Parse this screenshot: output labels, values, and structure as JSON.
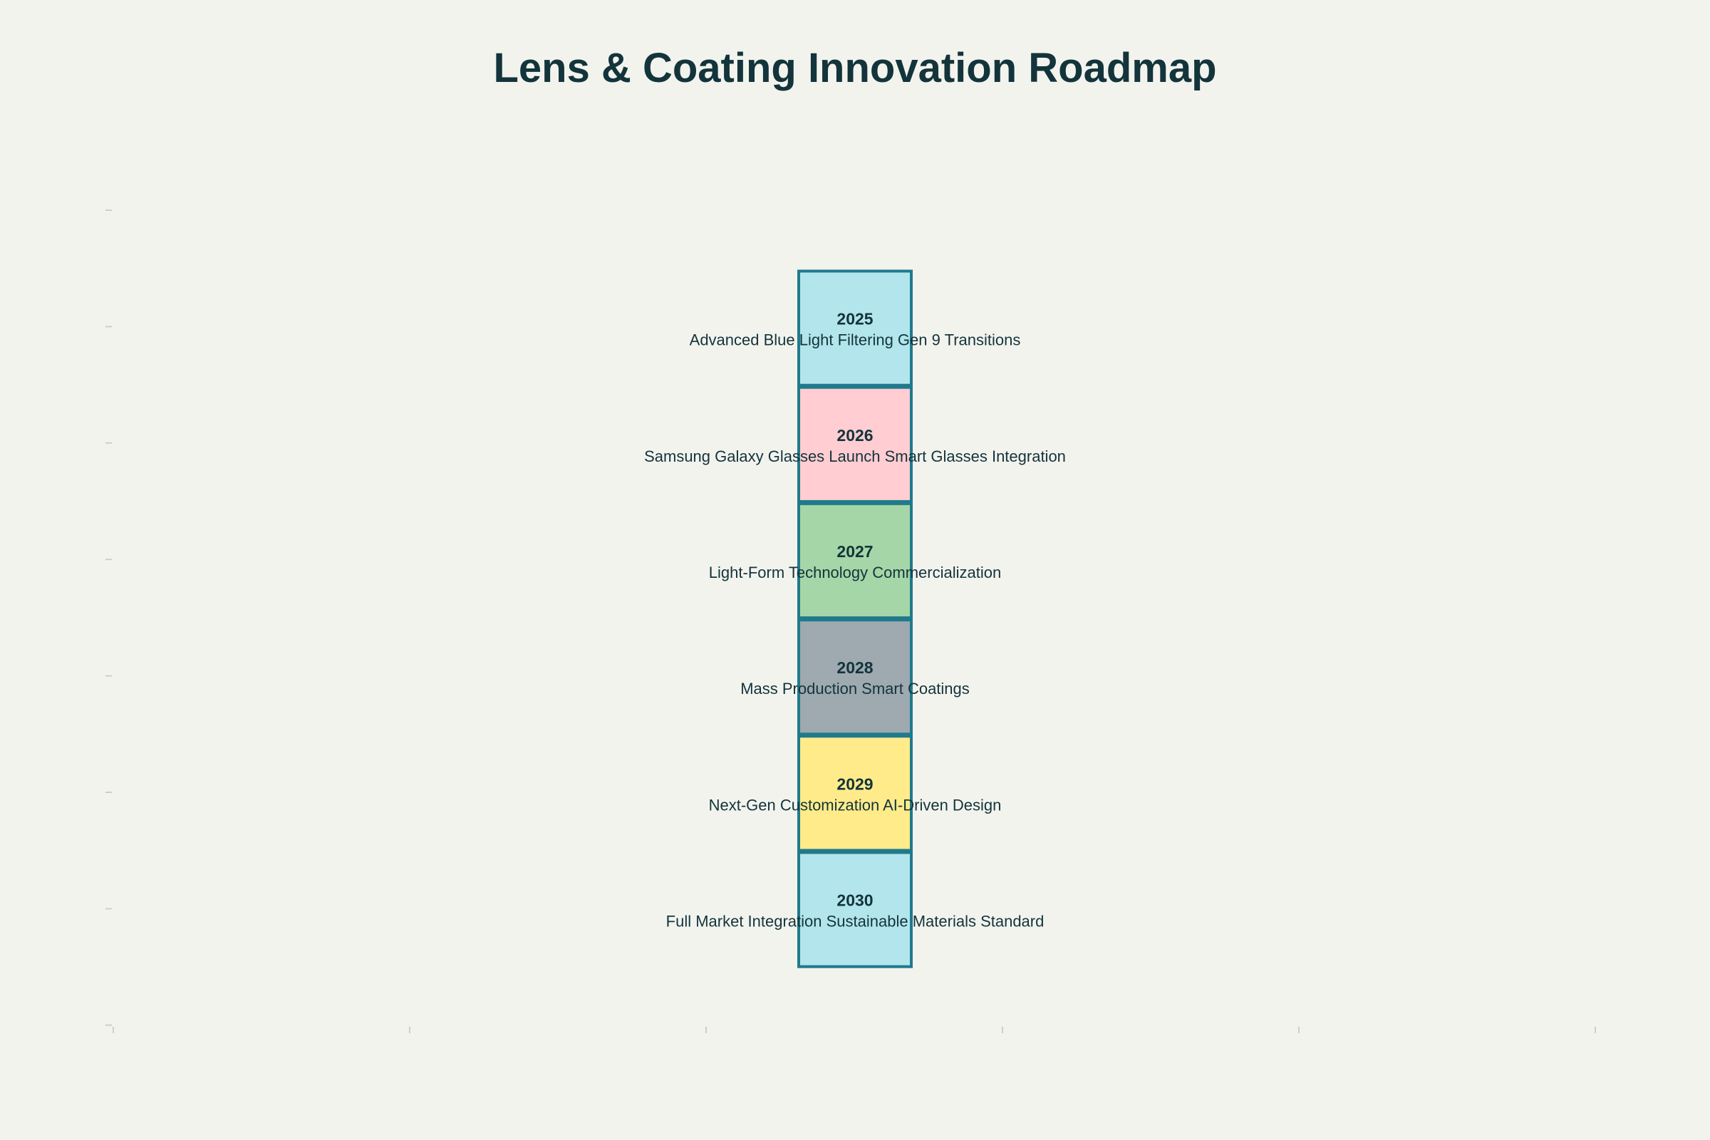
{
  "chart_data": {
    "type": "bar",
    "title": "Lens & Coating Innovation Roadmap",
    "orientation": "stacked-vertical-timeline",
    "grid": false,
    "legend": "none",
    "categories": [
      "2025",
      "2026",
      "2027",
      "2028",
      "2029",
      "2030"
    ],
    "labels": [
      "Advanced Blue Light Filtering Gen 9 Transitions",
      "Samsung Galaxy Glasses Launch Smart Glasses Integration",
      "Light-Form Technology Commercialization",
      "Mass Production Smart Coatings",
      "Next-Gen Customization AI-Driven Design",
      "Full Market Integration Sustainable Materials Standard"
    ],
    "values": [
      1,
      1,
      1,
      1,
      1,
      1
    ],
    "colors": [
      "#B3E5EC",
      "#FFCDD2",
      "#A5D6A7",
      "#9EA9B0",
      "#FFEB8A",
      "#B3E5EC"
    ],
    "border_color": "#1F7A8C",
    "text_color": "#13343B",
    "y_tick_count": 8,
    "x_tick_count": 6
  }
}
